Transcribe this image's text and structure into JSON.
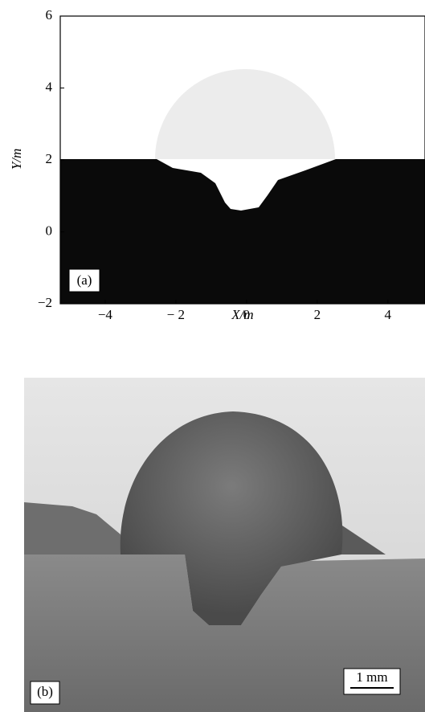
{
  "chart_data": {
    "type": "field",
    "xlabel": "X/m",
    "ylabel": "Y/m",
    "xlim": [
      -5.27,
      5.05
    ],
    "ylim": [
      -2,
      6
    ],
    "xticks": [
      {
        "value": -4,
        "label": "−4"
      },
      {
        "value": -2,
        "label": "− 2"
      },
      0,
      2,
      4
    ],
    "yticks": [
      {
        "value": -2,
        "label": "−2"
      },
      0,
      2,
      4,
      6
    ],
    "panel_label": "(a)"
  },
  "photo": {
    "panel_label": "(b)",
    "scale_bar": "1 mm"
  }
}
